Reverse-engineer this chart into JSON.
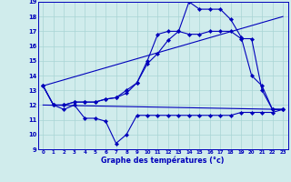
{
  "xlabel": "Graphe des températures (°c)",
  "bg_color": "#d0ecec",
  "grid_color": "#a8d4d4",
  "line_color": "#0000bb",
  "x_min": -0.5,
  "x_max": 23.5,
  "y_min": 9,
  "y_max": 19,
  "x_ticks": [
    0,
    1,
    2,
    3,
    4,
    5,
    6,
    7,
    8,
    9,
    10,
    11,
    12,
    13,
    14,
    15,
    16,
    17,
    18,
    19,
    20,
    21,
    22,
    23
  ],
  "y_ticks": [
    9,
    10,
    11,
    12,
    13,
    14,
    15,
    16,
    17,
    18,
    19
  ],
  "series": [
    {
      "x": [
        0,
        1,
        2,
        3,
        4,
        5,
        6,
        7,
        8,
        9,
        10,
        11,
        12,
        13,
        14,
        15,
        16,
        17,
        18,
        19,
        20,
        21,
        22,
        23
      ],
      "y": [
        13.3,
        12.0,
        11.7,
        12.0,
        11.1,
        11.1,
        10.9,
        9.4,
        10.0,
        11.3,
        11.3,
        11.3,
        11.3,
        11.3,
        11.3,
        11.3,
        11.3,
        11.3,
        11.3,
        11.5,
        11.5,
        11.5,
        11.5,
        11.7
      ],
      "marker": true
    },
    {
      "x": [
        0,
        23
      ],
      "y": [
        12.0,
        11.7
      ],
      "marker": false
    },
    {
      "x": [
        0,
        23
      ],
      "y": [
        13.3,
        18.0
      ],
      "marker": false
    },
    {
      "x": [
        0,
        1,
        2,
        3,
        4,
        5,
        6,
        7,
        8,
        9,
        10,
        11,
        12,
        13,
        14,
        15,
        16,
        17,
        18,
        19,
        20,
        21,
        22,
        23
      ],
      "y": [
        13.3,
        12.0,
        12.0,
        12.2,
        12.2,
        12.2,
        12.4,
        12.5,
        13.0,
        13.5,
        15.0,
        16.8,
        17.0,
        17.0,
        19.0,
        18.5,
        18.5,
        18.5,
        17.8,
        16.6,
        14.0,
        13.3,
        11.7,
        11.7
      ],
      "marker": true
    },
    {
      "x": [
        0,
        1,
        2,
        3,
        4,
        5,
        6,
        7,
        8,
        9,
        10,
        11,
        12,
        13,
        14,
        15,
        16,
        17,
        18,
        19,
        20,
        21,
        22,
        23
      ],
      "y": [
        13.3,
        12.0,
        12.0,
        12.2,
        12.2,
        12.2,
        12.4,
        12.5,
        12.8,
        13.5,
        14.8,
        15.5,
        16.4,
        17.0,
        16.8,
        16.8,
        17.0,
        17.0,
        17.0,
        16.5,
        16.5,
        13.0,
        11.7,
        11.7
      ],
      "marker": true
    }
  ]
}
